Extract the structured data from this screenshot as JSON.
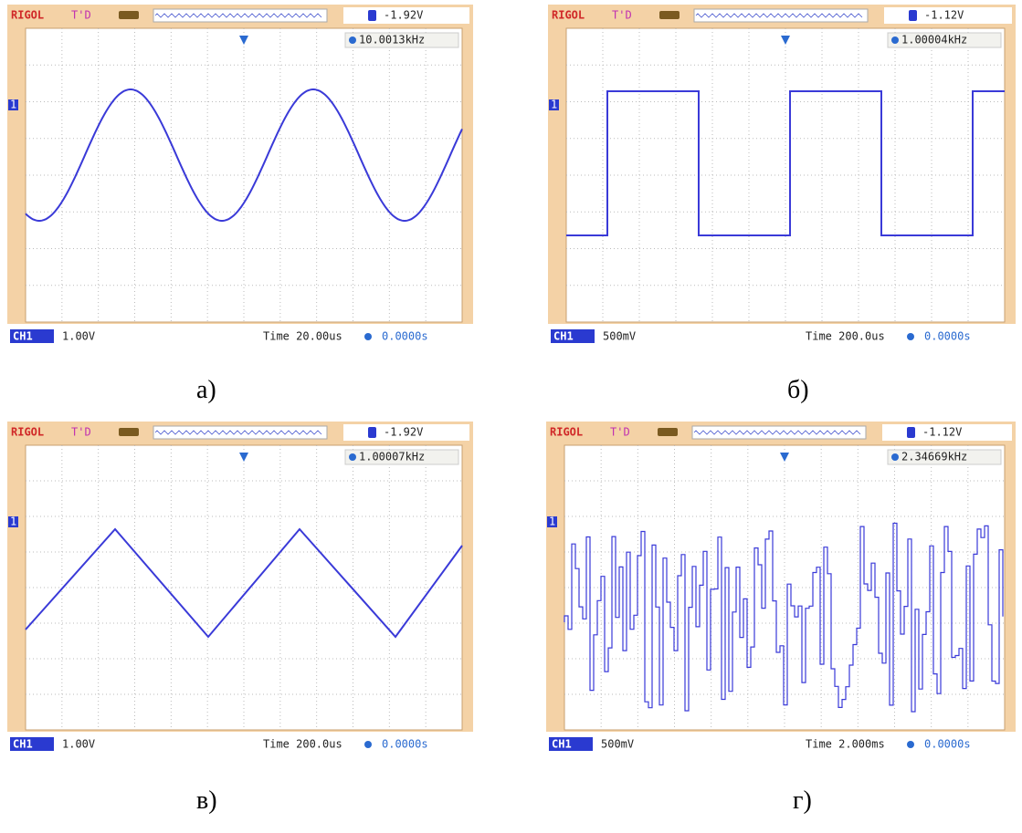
{
  "panels": [
    {
      "brand": "RIGOL",
      "status": "T'D",
      "trigger_level": "-1.92V",
      "channel_marker": "1",
      "frequency": "10.0013kHz",
      "channel": "CH1",
      "volts_per_div": "1.00V",
      "timebase": "Time 20.00us",
      "trigger_offset": "0.0000s",
      "caption": "а)"
    },
    {
      "brand": "RIGOL",
      "status": "T'D",
      "trigger_level": "-1.12V",
      "channel_marker": "1",
      "frequency": "1.00004kHz",
      "channel": "CH1",
      "volts_per_div": "500mV",
      "timebase": "Time 200.0us",
      "trigger_offset": "0.0000s",
      "caption": "б)"
    },
    {
      "brand": "RIGOL",
      "status": "T'D",
      "trigger_level": "-1.92V",
      "channel_marker": "1",
      "frequency": "1.00007kHz",
      "channel": "CH1",
      "volts_per_div": "1.00V",
      "timebase": "Time 200.0us",
      "trigger_offset": "0.0000s",
      "caption": "в)"
    },
    {
      "brand": "RIGOL",
      "status": "T'D",
      "trigger_level": "-1.12V",
      "channel_marker": "1",
      "frequency": "2.34669kHz",
      "channel": "CH1",
      "volts_per_div": "500mV",
      "timebase": "Time 2.000ms",
      "trigger_offset": "0.0000s",
      "caption": "г)"
    }
  ]
}
